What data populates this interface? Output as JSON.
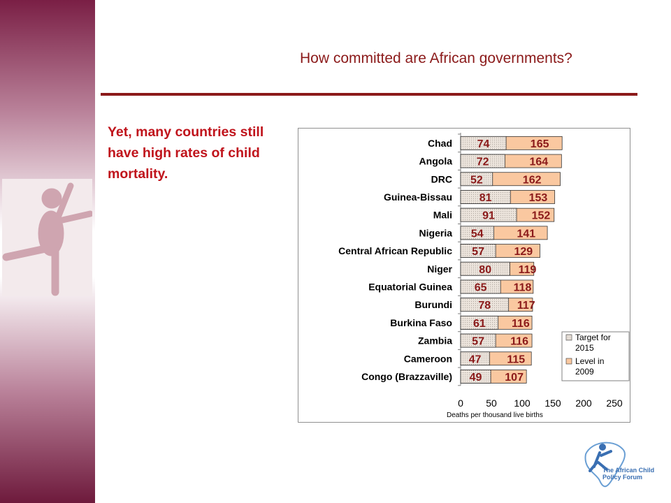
{
  "header": {
    "title": "How committed are African governments?"
  },
  "main": {
    "subtitle": "Yet, many countries still have high rates of child mortality."
  },
  "logo": {
    "line1": "The African Child",
    "line2": "Policy Forum"
  },
  "colors": {
    "accent": "#8b1a1a",
    "subtitle": "#c0141c",
    "band": "#7a1f45",
    "target_fill": "#ece4dc",
    "level_fill": "#fac8a0",
    "logo": "#3a6fb2"
  },
  "chart_data": {
    "type": "bar",
    "orientation": "horizontal",
    "categories": [
      "Chad",
      "Angola",
      "DRC",
      "Guinea-Bissau",
      "Mali",
      "Nigeria",
      "Central African Republic",
      "Niger",
      "Equatorial Guinea",
      "Burundi",
      "Burkina Faso",
      "Zambia",
      "Cameroon",
      "Congo (Brazzaville)"
    ],
    "series": [
      {
        "name": "Target for 2015",
        "values": [
          74,
          72,
          52,
          81,
          91,
          54,
          57,
          80,
          65,
          78,
          61,
          57,
          47,
          49
        ]
      },
      {
        "name": "Level in 2009",
        "values": [
          165,
          164,
          162,
          153,
          152,
          141,
          129,
          119,
          118,
          117,
          116,
          116,
          115,
          107
        ]
      }
    ],
    "xlabel": "Deaths per thousand live births",
    "ylabel": "",
    "xlim": [
      0,
      250
    ],
    "xticks": [
      "0",
      "50",
      "100",
      "150",
      "200",
      "250"
    ],
    "legend_position": "bottom-right",
    "grid": false
  }
}
